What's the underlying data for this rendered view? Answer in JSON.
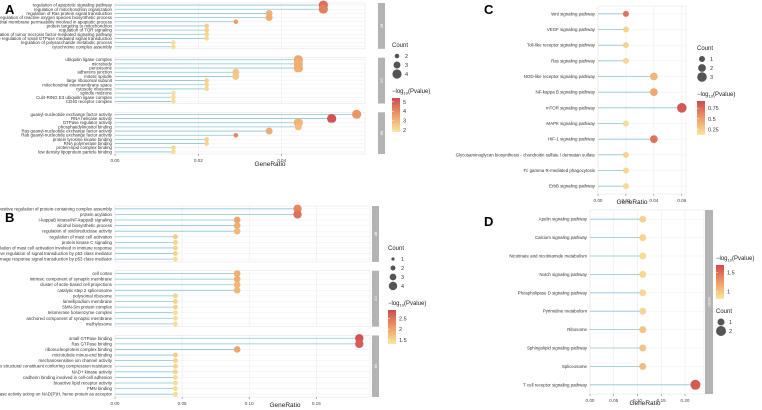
{
  "chart_data": [
    {
      "panel": "A",
      "type": "scatter",
      "title": "",
      "xlabel": "GeneRatio",
      "ylabel": "",
      "xlim": [
        0.0,
        0.06
      ],
      "xticks": [
        "0.00",
        "0.02",
        "0.04"
      ],
      "xtick_values": [
        0.0,
        0.02,
        0.04
      ],
      "strip_labels": [
        "BP",
        "CC",
        "MF"
      ],
      "groups": [
        {
          "strip": "BP",
          "terms": [
            {
              "label": "regulation of apoptotic signaling pathway",
              "x": 0.05,
              "count": 4,
              "logp": 4.6
            },
            {
              "label": "regulation of mitochondrion organization",
              "x": 0.05,
              "count": 4,
              "logp": 4.2
            },
            {
              "label": "regulation of Ras protein signal transduction",
              "x": 0.037,
              "count": 3,
              "logp": 3.0
            },
            {
              "label": "regulation of reactive oxygen species biosynthetic process",
              "x": 0.037,
              "count": 3,
              "logp": 3.2
            },
            {
              "label": "regulation of mitochondrial membrane permeability involved in apoptotic process",
              "x": 0.029,
              "count": 2,
              "logp": 3.6
            },
            {
              "label": "protein targeting to mitochondrion",
              "x": 0.022,
              "count": 2,
              "logp": 2.4
            },
            {
              "label": "regulation of TOR signaling",
              "x": 0.022,
              "count": 2,
              "logp": 2.3
            },
            {
              "label": "regulation of tumor necrosis factor-mediated signaling pathway",
              "x": 0.022,
              "count": 2,
              "logp": 2.2
            },
            {
              "label": "negative regulation of small GTPase mediated signal transduction",
              "x": 0.022,
              "count": 2,
              "logp": 2.1
            },
            {
              "label": "regulation of polysaccharide metabolic process",
              "x": 0.014,
              "count": 2,
              "logp": 2.0
            },
            {
              "label": "cytochrome complex assembly",
              "x": 0.014,
              "count": 2,
              "logp": 2.0
            }
          ]
        },
        {
          "strip": "CC",
          "terms": [
            {
              "label": "ubiquitin ligase complex",
              "x": 0.044,
              "count": 4,
              "logp": 3.3
            },
            {
              "label": "microbody",
              "x": 0.044,
              "count": 4,
              "logp": 3.1
            },
            {
              "label": "peroxisome",
              "x": 0.044,
              "count": 4,
              "logp": 3.1
            },
            {
              "label": "adherens junction",
              "x": 0.029,
              "count": 3,
              "logp": 2.6
            },
            {
              "label": "mitotic spindle",
              "x": 0.029,
              "count": 3,
              "logp": 2.5
            },
            {
              "label": "large ribosomal subunit",
              "x": 0.022,
              "count": 2,
              "logp": 2.3
            },
            {
              "label": "mitochondrial intermembrane space",
              "x": 0.022,
              "count": 2,
              "logp": 2.2
            },
            {
              "label": "cytosolic ribosome",
              "x": 0.022,
              "count": 2,
              "logp": 2.1
            },
            {
              "label": "spindle midzone",
              "x": 0.014,
              "count": 2,
              "logp": 2.0
            },
            {
              "label": "Cul4-RING E3 ubiquitin ligase complex",
              "x": 0.014,
              "count": 2,
              "logp": 2.0
            },
            {
              "label": "CD40 receptor complex",
              "x": 0.014,
              "count": 2,
              "logp": 2.0
            }
          ]
        },
        {
          "strip": "MF",
          "terms": [
            {
              "label": "guanyl-nucleotide exchange factor activity",
              "x": 0.058,
              "count": 4,
              "logp": 3.7
            },
            {
              "label": "RNA helicase activity",
              "x": 0.052,
              "count": 4,
              "logp": 5.2
            },
            {
              "label": "GTPase regulator activity",
              "x": 0.044,
              "count": 4,
              "logp": 3.0
            },
            {
              "label": "phosphatidylinositol binding",
              "x": 0.044,
              "count": 3,
              "logp": 2.8
            },
            {
              "label": "Ras guanyl-nucleotide exchange factor activity",
              "x": 0.037,
              "count": 3,
              "logp": 3.2
            },
            {
              "label": "Rab guanyl-nucleotide exchange factor activity",
              "x": 0.029,
              "count": 2,
              "logp": 4.1
            },
            {
              "label": "protein tyrosine kinase binding",
              "x": 0.022,
              "count": 2,
              "logp": 2.3
            },
            {
              "label": "RNA polymerase binding",
              "x": 0.022,
              "count": 2,
              "logp": 2.2
            },
            {
              "label": "protein-lipid complex binding",
              "x": 0.014,
              "count": 2,
              "logp": 2.1
            },
            {
              "label": "low density lipoprotein particle binding",
              "x": 0.014,
              "count": 2,
              "logp": 2.0
            }
          ]
        }
      ],
      "legend_count": {
        "title": "Count",
        "values": [
          2,
          3,
          4
        ]
      },
      "legend_color": {
        "title_main": "−log",
        "title_sub": "10",
        "title_end": "(Pvalue)",
        "ticks": [
          5,
          4,
          3,
          2
        ],
        "range": [
          1.8,
          5.4
        ]
      }
    },
    {
      "panel": "B",
      "type": "scatter",
      "title": "",
      "xlabel": "GeneRatio",
      "ylabel": "",
      "xlim": [
        0.0,
        0.19
      ],
      "xticks": [
        "0.00",
        "0.05",
        "0.10",
        "0.15"
      ],
      "xtick_values": [
        0.0,
        0.05,
        0.1,
        0.15
      ],
      "strip_labels": [
        "BP",
        "CC",
        "MF"
      ],
      "groups": [
        {
          "strip": "BP",
          "terms": [
            {
              "label": "positive regulation of protein-containing complex assembly",
              "x": 0.136,
              "count": 4,
              "logp": 2.3
            },
            {
              "label": "protein acylation",
              "x": 0.136,
              "count": 4,
              "logp": 2.5
            },
            {
              "label": "I-kappaB kinase/NF-kappaB signaling",
              "x": 0.091,
              "count": 3,
              "logp": 2.0
            },
            {
              "label": "alcohol biosynthetic process",
              "x": 0.091,
              "count": 3,
              "logp": 1.9
            },
            {
              "label": "regulation of oxidoreductase activity",
              "x": 0.091,
              "count": 3,
              "logp": 1.8
            },
            {
              "label": "regulation of mast cell activation",
              "x": 0.045,
              "count": 2,
              "logp": 1.6
            },
            {
              "label": "protein kinase C signaling",
              "x": 0.045,
              "count": 2,
              "logp": 1.5
            },
            {
              "label": "regulation of mast cell activation involved in immune response",
              "x": 0.045,
              "count": 2,
              "logp": 1.5
            },
            {
              "label": "positive regulation of signal transduction by p53 class mediator",
              "x": 0.045,
              "count": 2,
              "logp": 1.5
            },
            {
              "label": "positive regulation of DNA damage response signal transduction by p53 class mediator",
              "x": 0.045,
              "count": 2,
              "logp": 1.4
            }
          ]
        },
        {
          "strip": "CC",
          "terms": [
            {
              "label": "cell cortex",
              "x": 0.091,
              "count": 3,
              "logp": 1.9
            },
            {
              "label": "intrinsic component of synaptic membrane",
              "x": 0.091,
              "count": 3,
              "logp": 1.9
            },
            {
              "label": "cluster of actin-based cell projections",
              "x": 0.091,
              "count": 3,
              "logp": 1.8
            },
            {
              "label": "catalytic step 2 spliceosome",
              "x": 0.091,
              "count": 3,
              "logp": 1.8
            },
            {
              "label": "polysomal ribosome",
              "x": 0.045,
              "count": 2,
              "logp": 1.5
            },
            {
              "label": "lamellipodium membrane",
              "x": 0.045,
              "count": 2,
              "logp": 1.5
            },
            {
              "label": "SMN-Sm protein complex",
              "x": 0.045,
              "count": 2,
              "logp": 1.5
            },
            {
              "label": "telomerase holoenzyme complex",
              "x": 0.045,
              "count": 2,
              "logp": 1.4
            },
            {
              "label": "anchored component of synaptic membrane",
              "x": 0.045,
              "count": 2,
              "logp": 1.4
            },
            {
              "label": "methylosome",
              "x": 0.045,
              "count": 2,
              "logp": 1.4
            }
          ]
        },
        {
          "strip": "MF",
          "terms": [
            {
              "label": "small GTPase binding",
              "x": 0.182,
              "count": 4,
              "logp": 2.8
            },
            {
              "label": "Ras GTPase binding",
              "x": 0.182,
              "count": 4,
              "logp": 2.7
            },
            {
              "label": "ribonucleoprotein complex binding",
              "x": 0.091,
              "count": 3,
              "logp": 2.0
            },
            {
              "label": "microtubule minus-end binding",
              "x": 0.045,
              "count": 2,
              "logp": 1.6
            },
            {
              "label": "mechanosensitive ion channel activity",
              "x": 0.045,
              "count": 2,
              "logp": 1.5
            },
            {
              "label": "extracellular matrix structural constituent conferring compression resistance",
              "x": 0.045,
              "count": 2,
              "logp": 1.5
            },
            {
              "label": "NAD+ kinase activity",
              "x": 0.045,
              "count": 2,
              "logp": 1.5
            },
            {
              "label": "cadherin binding involved in cell-cell adhesion",
              "x": 0.045,
              "count": 2,
              "logp": 1.4
            },
            {
              "label": "bioactive lipid receptor activity",
              "x": 0.045,
              "count": 2,
              "logp": 1.4
            },
            {
              "label": "FMN binding",
              "x": 0.045,
              "count": 2,
              "logp": 1.4
            },
            {
              "label": "oxidoreductase activity acting on NAD(P)H, heme protein as acceptor",
              "x": 0.045,
              "count": 2,
              "logp": 1.4
            }
          ]
        }
      ],
      "legend_count": {
        "title": "Count",
        "values": [
          1,
          2,
          3,
          4
        ]
      },
      "legend_color": {
        "title_main": "−log",
        "title_sub": "10",
        "title_end": "(Pvalue)",
        "ticks": [
          2.5,
          2.0,
          1.5
        ],
        "range": [
          1.3,
          2.9
        ]
      }
    },
    {
      "panel": "C",
      "type": "scatter",
      "title": "",
      "xlabel": "GeneRatio",
      "ylabel": "",
      "xlim": [
        0.0,
        0.063
      ],
      "xticks": [
        "0.00",
        "0.02",
        "0.04",
        "0.06"
      ],
      "xtick_values": [
        0.0,
        0.02,
        0.04,
        0.06
      ],
      "strip_labels": [],
      "groups": [
        {
          "strip": "",
          "terms": [
            {
              "label": "Wnt signaling pathway",
              "x": 0.02,
              "count": 1,
              "logp": 0.72
            },
            {
              "label": "VEGF signaling pathway",
              "x": 0.02,
              "count": 1,
              "logp": 0.22
            },
            {
              "label": "Toll-like receptor signaling pathway",
              "x": 0.02,
              "count": 1,
              "logp": 0.22
            },
            {
              "label": "Ras signaling pathway",
              "x": 0.02,
              "count": 1,
              "logp": 0.2
            },
            {
              "label": "NOD-like receptor signaling pathway",
              "x": 0.04,
              "count": 2,
              "logp": 0.38
            },
            {
              "label": "NF-kappa B signaling pathway",
              "x": 0.04,
              "count": 2,
              "logp": 0.45
            },
            {
              "label": "mTOR signaling pathway",
              "x": 0.06,
              "count": 3,
              "logp": 0.85
            },
            {
              "label": "MAPK signaling pathway",
              "x": 0.02,
              "count": 1,
              "logp": 0.18
            },
            {
              "label": "HIF-1 signaling pathway",
              "x": 0.04,
              "count": 2,
              "logp": 0.72
            },
            {
              "label": "Glycosaminoglycan biosynthesis - chondroitin sulfate / dermatan sulfate",
              "x": 0.02,
              "count": 1,
              "logp": 0.22
            },
            {
              "label": "Fc gamma R-mediated phagocytosis",
              "x": 0.02,
              "count": 1,
              "logp": 0.2
            },
            {
              "label": "ErbB signaling pathway",
              "x": 0.02,
              "count": 1,
              "logp": 0.18
            }
          ]
        }
      ],
      "legend_count": {
        "title": "Count",
        "values": [
          1,
          2,
          3
        ]
      },
      "legend_color": {
        "title_main": "−log",
        "title_sub": "10",
        "title_end": "(Pvalue)",
        "ticks": [
          0.75,
          0.5,
          0.25
        ],
        "range": [
          0.12,
          0.92
        ]
      }
    },
    {
      "panel": "D",
      "type": "scatter",
      "title": "",
      "xlabel": "GeneRatio",
      "ylabel": "",
      "xlim": [
        0.0,
        0.24
      ],
      "xticks": [
        "0.00",
        "0.05",
        "0.10",
        "0.15",
        "0.20"
      ],
      "xtick_values": [
        0.0,
        0.05,
        0.1,
        0.15,
        0.2
      ],
      "strip_labels": [
        "KEGG"
      ],
      "groups": [
        {
          "strip": "KEGG",
          "terms": [
            {
              "label": "Apelin signaling pathway",
              "x": 0.111,
              "count": 1,
              "logp": 0.92
            },
            {
              "label": "Calcium signaling pathway",
              "x": 0.111,
              "count": 1,
              "logp": 0.9
            },
            {
              "label": "Nicotinate and nicotinamide metabolism",
              "x": 0.111,
              "count": 1,
              "logp": 0.88
            },
            {
              "label": "Notch signaling pathway",
              "x": 0.111,
              "count": 1,
              "logp": 0.88
            },
            {
              "label": "Phospholipase D signaling pathway",
              "x": 0.111,
              "count": 1,
              "logp": 0.88
            },
            {
              "label": "Pyrimidine metabolism",
              "x": 0.111,
              "count": 1,
              "logp": 0.9
            },
            {
              "label": "Ribosome",
              "x": 0.111,
              "count": 1,
              "logp": 1.0
            },
            {
              "label": "Sphingolipid signaling pathway",
              "x": 0.111,
              "count": 1,
              "logp": 1.0
            },
            {
              "label": "Spliceosome",
              "x": 0.111,
              "count": 1,
              "logp": 1.05
            },
            {
              "label": "T cell receptor signaling pathway",
              "x": 0.222,
              "count": 2,
              "logp": 1.6
            }
          ]
        }
      ],
      "legend_count": {
        "title": "Count",
        "values": [
          1,
          2
        ]
      },
      "legend_color": {
        "title_main": "−log",
        "title_sub": "10",
        "title_end": "(Pvalue)",
        "ticks": [
          1.5,
          1.0
        ],
        "range": [
          0.8,
          1.7
        ]
      }
    }
  ],
  "colors": {
    "low": "#f6e7a0",
    "mid": "#ee9b64",
    "high": "#cd4a52",
    "stem": "#8fc3d6",
    "grid": "#ebebeb",
    "strip": "#b3b3b3"
  }
}
